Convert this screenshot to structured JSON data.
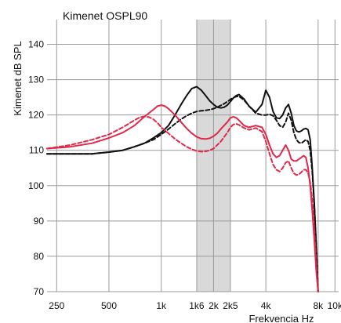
{
  "chart_data": {
    "type": "line",
    "title": "Kimenet OSPL90",
    "xlabel": "Frekvencia Hz",
    "ylabel": "Kimenet dB SPL",
    "x_scale": "log",
    "xlim": [
      220,
      10500
    ],
    "ylim": [
      70,
      147
    ],
    "grid": true,
    "x_ticks": [
      {
        "value": 250,
        "label": "250"
      },
      {
        "value": 500,
        "label": "500"
      },
      {
        "value": 1000,
        "label": "1k"
      },
      {
        "value": 1600,
        "label": "1k6"
      },
      {
        "value": 2000,
        "label": "2k"
      },
      {
        "value": 2500,
        "label": "2k5"
      },
      {
        "value": 4000,
        "label": "4k"
      },
      {
        "value": 8000,
        "label": "8k"
      },
      {
        "value": 10000,
        "label": "10k"
      }
    ],
    "y_ticks": [
      70,
      80,
      90,
      100,
      110,
      120,
      130,
      140
    ],
    "shaded_band": {
      "x_from": 1600,
      "x_to": 2500,
      "color": "#d9d9d9"
    },
    "series": [
      {
        "color": "#111111",
        "dash": "solid",
        "x": [
          220,
          300,
          400,
          500,
          600,
          700,
          800,
          900,
          1000,
          1100,
          1200,
          1300,
          1400,
          1500,
          1600,
          1700,
          1800,
          1900,
          2000,
          2100,
          2200,
          2300,
          2400,
          2500,
          2600,
          2700,
          2800,
          3000,
          3200,
          3500,
          3800,
          4000,
          4200,
          4400,
          4600,
          4800,
          5000,
          5200,
          5400,
          5600,
          5800,
          6000,
          6200,
          6400,
          6600,
          6800,
          7000,
          7200,
          7400,
          7600,
          7800,
          8000
        ],
        "values": [
          109,
          109,
          109,
          109.5,
          110,
          111,
          112,
          113.5,
          115,
          117,
          120,
          123,
          125.5,
          127.5,
          128,
          127,
          125.5,
          124,
          123,
          122.2,
          122,
          122.2,
          122.8,
          123.8,
          124.8,
          125.5,
          125.8,
          124.5,
          122.5,
          120.8,
          123,
          127,
          125,
          121,
          119.2,
          119,
          120,
          122,
          123,
          120.5,
          117,
          115.5,
          115.2,
          115.5,
          116,
          116.2,
          115.8,
          113,
          105,
          95,
          83,
          70
        ]
      },
      {
        "color": "#111111",
        "dash": "dashed",
        "x": [
          220,
          300,
          400,
          500,
          600,
          700,
          800,
          900,
          1000,
          1100,
          1200,
          1300,
          1400,
          1500,
          1600,
          1700,
          1800,
          1900,
          2000,
          2100,
          2200,
          2300,
          2400,
          2500,
          2600,
          2700,
          2800,
          3000,
          3200,
          3500,
          3800,
          4000,
          4200,
          4400,
          4600,
          4800,
          5000,
          5200,
          5400,
          5600,
          5800,
          6000,
          6200,
          6400,
          6600,
          6800,
          7000,
          7200,
          7400,
          7600,
          7800,
          8000
        ],
        "values": [
          109,
          109,
          109,
          109.5,
          110,
          111,
          112,
          113,
          114.5,
          116,
          117.5,
          118.8,
          119.8,
          120.5,
          121,
          121.2,
          121.3,
          121.5,
          121.8,
          122.2,
          122.7,
          123.2,
          123.8,
          124.4,
          124.9,
          125.2,
          125.3,
          124.2,
          122.5,
          120.5,
          120,
          120,
          120.2,
          119.8,
          118.5,
          117,
          116.5,
          118,
          120.5,
          118.5,
          115,
          113,
          112.2,
          112,
          112.5,
          113,
          112.5,
          110,
          104,
          95,
          83,
          70
        ]
      },
      {
        "color": "#e0284a",
        "dash": "solid",
        "x": [
          220,
          300,
          400,
          500,
          600,
          700,
          800,
          900,
          950,
          1000,
          1050,
          1100,
          1200,
          1300,
          1400,
          1500,
          1600,
          1700,
          1800,
          1900,
          2000,
          2100,
          2200,
          2400,
          2500,
          2600,
          2700,
          2800,
          3000,
          3200,
          3500,
          3800,
          4000,
          4200,
          4400,
          4600,
          4800,
          5000,
          5200,
          5400,
          5600,
          5800,
          6000,
          6200,
          6400,
          6600,
          6800,
          7000,
          7200,
          7400,
          7600,
          7800,
          8000
        ],
        "values": [
          110.5,
          111,
          112,
          113.5,
          115,
          117,
          119.5,
          121.5,
          122.5,
          122.8,
          122.5,
          121.8,
          120,
          118,
          116.2,
          114.8,
          113.8,
          113.3,
          113.2,
          113.4,
          114,
          114.8,
          116,
          118,
          119.2,
          119.5,
          119.2,
          118.5,
          117,
          116.5,
          117,
          116.5,
          114.5,
          111.5,
          109,
          108,
          108.5,
          110,
          111.5,
          110,
          107.5,
          107,
          107,
          107.5,
          108,
          108.5,
          108,
          105,
          100,
          93,
          85,
          76,
          70
        ]
      },
      {
        "color": "#e0284a",
        "dash": "dashed",
        "x": [
          220,
          300,
          400,
          500,
          600,
          700,
          750,
          800,
          850,
          900,
          950,
          1000,
          1100,
          1200,
          1300,
          1400,
          1500,
          1600,
          1700,
          1800,
          1900,
          2000,
          2100,
          2200,
          2400,
          2500,
          2600,
          2700,
          2800,
          3000,
          3200,
          3500,
          3800,
          4000,
          4200,
          4400,
          4600,
          4800,
          5000,
          5200,
          5400,
          5600,
          5800,
          6000,
          6200,
          6400,
          6600,
          6800,
          7000,
          7200,
          7400,
          7600,
          7800,
          8000
        ],
        "values": [
          110.5,
          111.5,
          113,
          114.5,
          116.5,
          118.5,
          119.3,
          119.6,
          119.4,
          118.8,
          117.8,
          116.5,
          114.8,
          113.2,
          112,
          111,
          110.3,
          109.8,
          109.6,
          109.7,
          110,
          110.5,
          111.5,
          112.5,
          115,
          116.5,
          117.3,
          117.5,
          117.2,
          116.3,
          115.8,
          116.3,
          115.3,
          112.5,
          109,
          106,
          104.5,
          104,
          105,
          106.5,
          107,
          105,
          103.5,
          103,
          103.2,
          103.8,
          104.5,
          104.5,
          103.5,
          101,
          96,
          88,
          78,
          70
        ]
      }
    ]
  }
}
